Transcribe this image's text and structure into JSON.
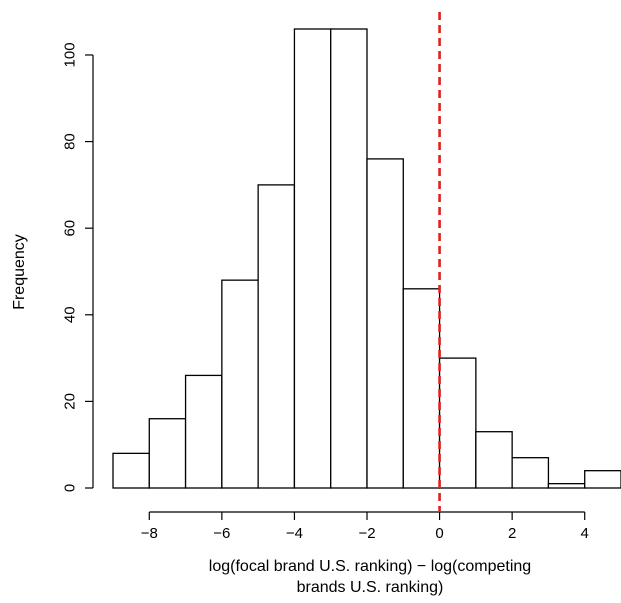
{
  "chart_data": {
    "type": "bar",
    "title": "",
    "ylabel": "Frequency",
    "xlabel_lines": [
      "log(focal brand U.S. ranking) − log(competing",
      "brands U.S. ranking)"
    ],
    "bin_edges": [
      -9,
      -8,
      -7,
      -6,
      -5,
      -4,
      -3,
      -2,
      -1,
      0,
      1,
      2,
      3,
      4,
      5
    ],
    "values": [
      8,
      16,
      26,
      48,
      70,
      106,
      106,
      76,
      46,
      30,
      13,
      7,
      1,
      4
    ],
    "xticks": [
      -8,
      -6,
      -4,
      -2,
      0,
      2,
      4
    ],
    "xtick_labels": [
      "−8",
      "−6",
      "−4",
      "−2",
      "0",
      "2",
      "4"
    ],
    "yticks": [
      0,
      20,
      40,
      60,
      80,
      100
    ],
    "ytick_labels": [
      "0",
      "20",
      "40",
      "60",
      "80",
      "100"
    ],
    "xlim": [
      -9,
      5
    ],
    "ylim": [
      0,
      106
    ],
    "reference_line": {
      "x": 0,
      "style": "dashed",
      "color": "#e02020"
    },
    "grid": false,
    "colors": {
      "bar_fill": "#ffffff",
      "bar_stroke": "#000000",
      "axis": "#000000"
    }
  }
}
